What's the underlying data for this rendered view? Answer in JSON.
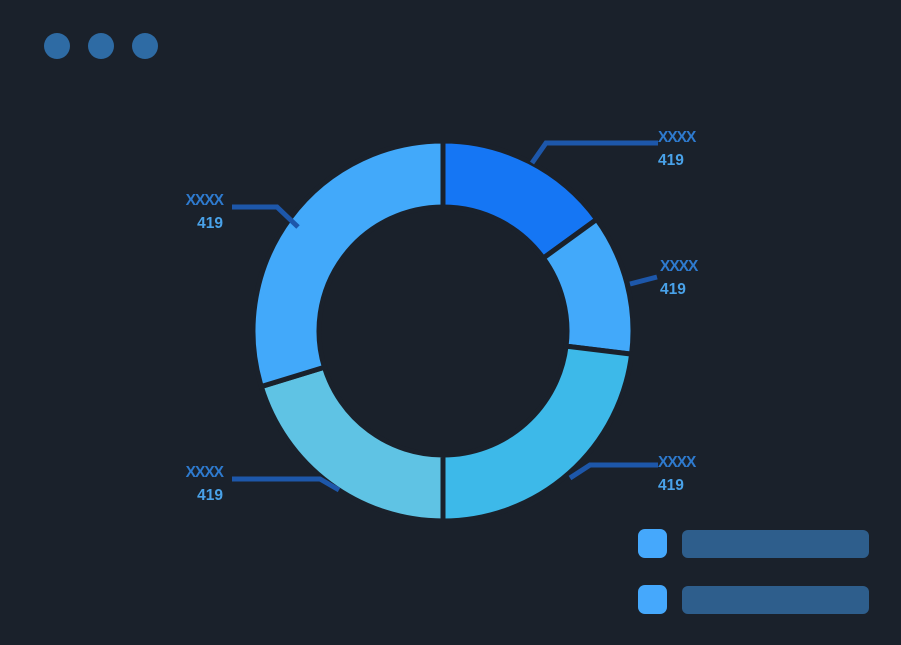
{
  "theme": {
    "bg": "#1a212b",
    "dot": "#2e6ba4",
    "leader": "#1d57aa",
    "label_title": "#2e7ace",
    "label_value": "#49a2e9",
    "legend_swatch": "#45a8fc",
    "legend_bar": "#2e5e8c"
  },
  "window": {
    "controls": [
      "window-dot",
      "window-dot",
      "window-dot"
    ]
  },
  "chart_data": {
    "type": "pie",
    "variant": "donut",
    "title": "",
    "outer_radius": 190,
    "inner_radius": 124,
    "gap_width": 5,
    "segments": [
      {
        "label": "XXXX",
        "value": "419",
        "start_angle": 0,
        "end_angle": 54,
        "percent": 15,
        "color": "#1576f4",
        "position": "top-right"
      },
      {
        "label": "XXXX",
        "value": "419",
        "start_angle": 54,
        "end_angle": 97,
        "percent": 12,
        "color": "#42a9fa",
        "position": "right"
      },
      {
        "label": "XXXX",
        "value": "419",
        "start_angle": 97,
        "end_angle": 180,
        "percent": 23,
        "color": "#3db9e9",
        "position": "bottom-right"
      },
      {
        "label": "XXXX",
        "value": "419",
        "start_angle": 180,
        "end_angle": 253,
        "percent": 20,
        "color": "#5fc3e4",
        "position": "bottom-left"
      },
      {
        "label": "XXXX",
        "value": "419",
        "start_angle": 253,
        "end_angle": 360,
        "percent": 30,
        "color": "#42a9fa",
        "position": "upper-left"
      }
    ],
    "legend": [
      {
        "swatch_color": "#45a8fc",
        "label": ""
      },
      {
        "swatch_color": "#45a8fc",
        "label": ""
      }
    ],
    "legend_position": "bottom-right"
  }
}
